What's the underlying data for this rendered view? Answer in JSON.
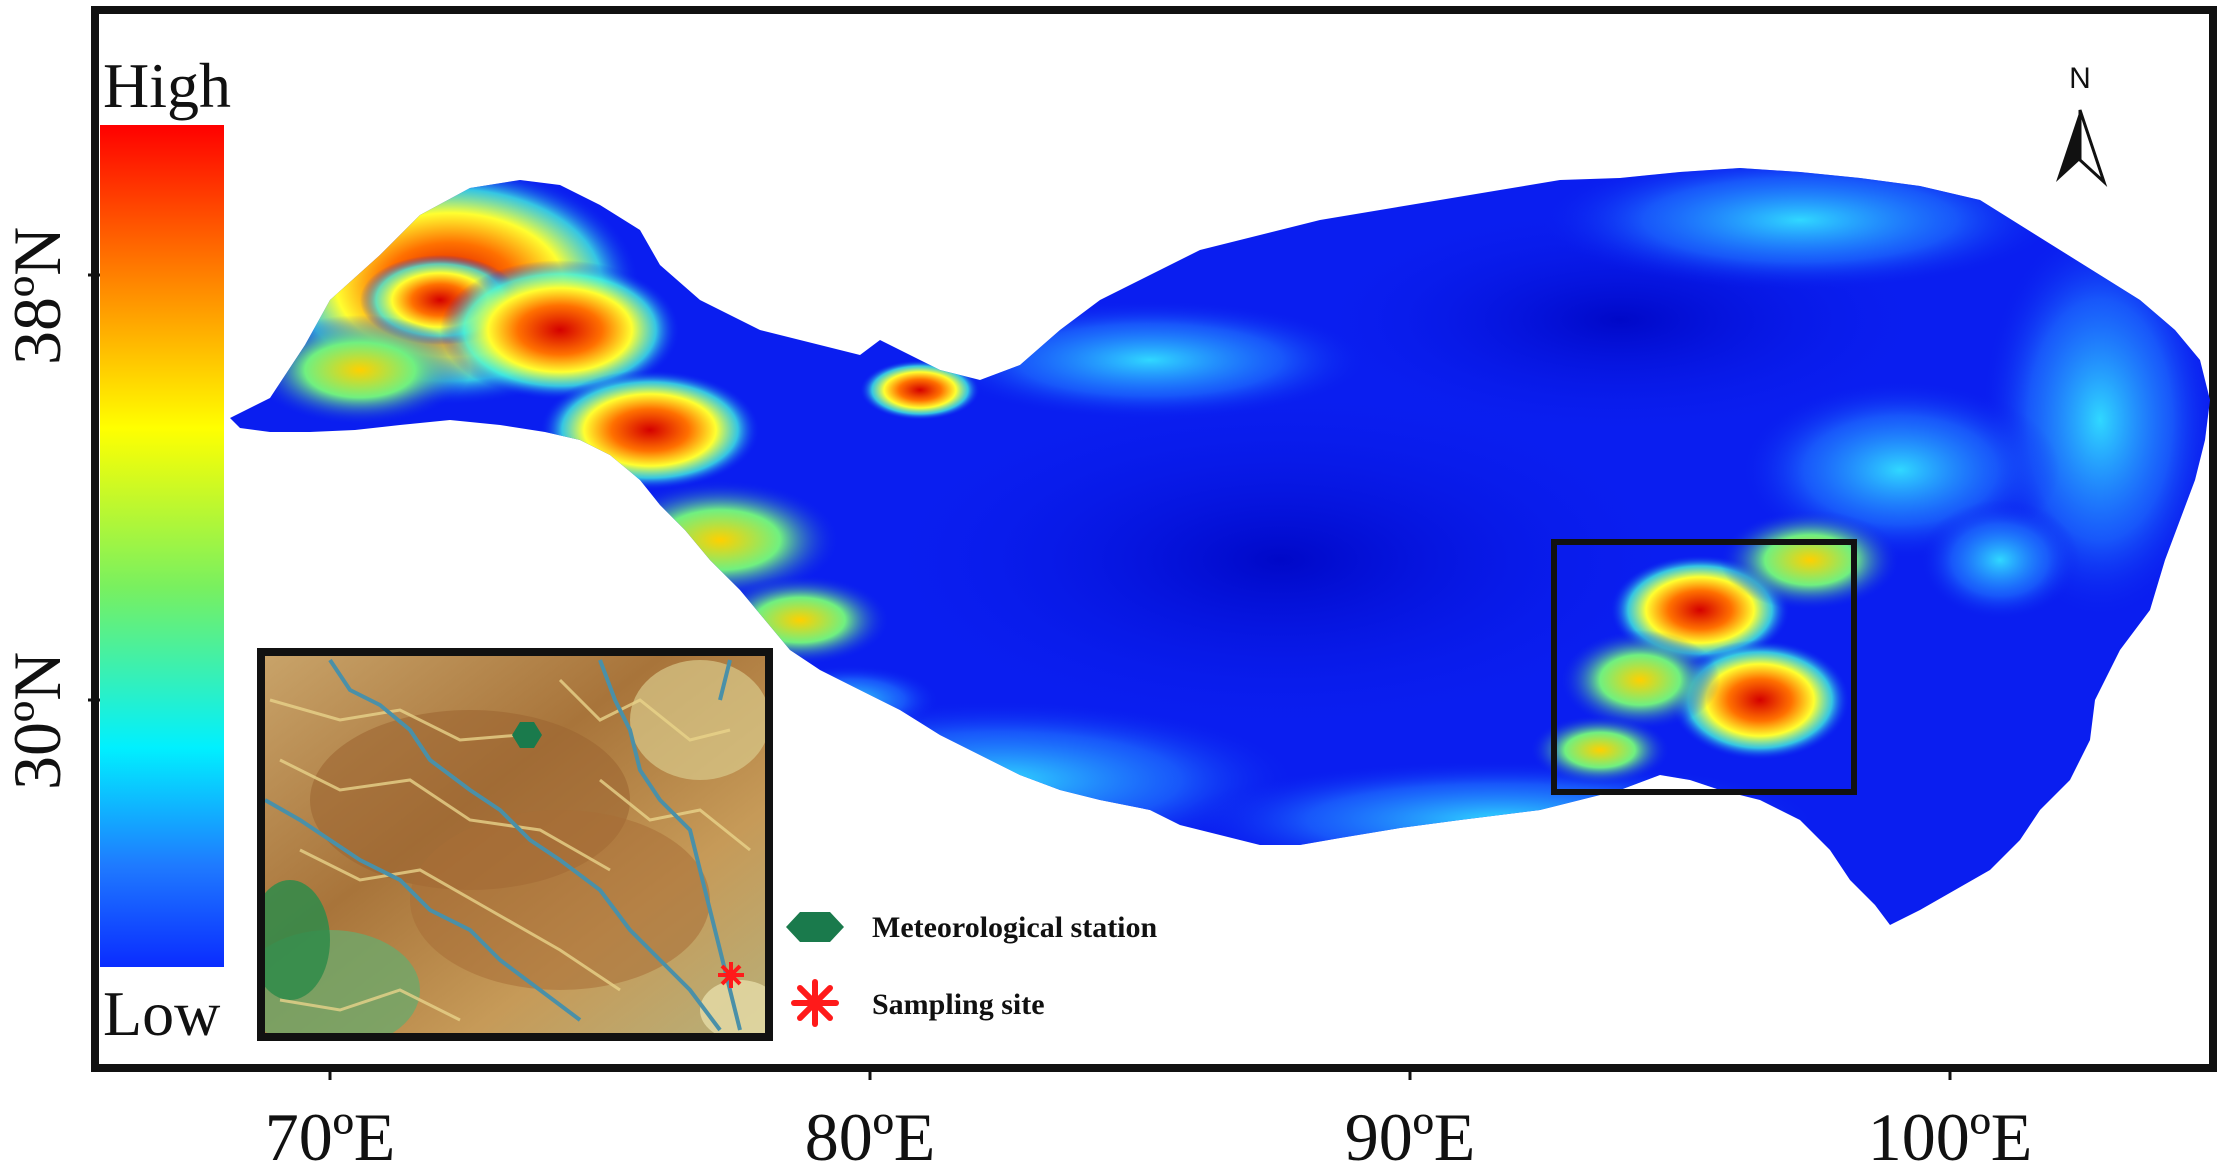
{
  "legend": {
    "high_label": "High",
    "low_label": "Low",
    "colors": [
      "#ff0000",
      "#ff8000",
      "#ffff00",
      "#80ff40",
      "#00ffff",
      "#0080ff",
      "#0000ff"
    ]
  },
  "axes": {
    "lat_ticks": [
      "38ºN",
      "30ºN"
    ],
    "lon_ticks": [
      "70ºE",
      "80ºE",
      "90ºE",
      "100ºE"
    ]
  },
  "north_arrow": {
    "label": "N",
    "icon": "north-arrow-icon"
  },
  "inset_legend": {
    "station_label": "Meteorological station",
    "station_icon": "green-hexagon-icon",
    "station_color": "#1a7a4c",
    "site_label": "Sampling site",
    "site_icon": "red-asterisk-icon",
    "site_color": "#ff1a1a"
  },
  "colors": {
    "plateau_base": "#0a1ef0",
    "river": "#4a90a8",
    "frame": "#111111"
  }
}
